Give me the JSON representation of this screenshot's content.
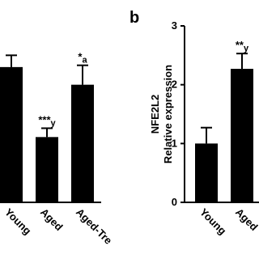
{
  "chart_data": [
    {
      "type": "bar",
      "categories": [
        "Young",
        "Aged",
        "Aged-Tre"
      ],
      "values": [
        2.3,
        1.11,
        2.0
      ],
      "errors": [
        0.2,
        0.15,
        0.33
      ],
      "annotations": [
        null,
        {
          "stars": "***",
          "letter": "y"
        },
        {
          "stars": "*",
          "letter": "a"
        }
      ],
      "color": "#000000",
      "ylim": [
        0,
        3
      ]
    },
    {
      "type": "bar",
      "title": "b",
      "ylabel": [
        "NFE2L2",
        "Relative expression"
      ],
      "categories": [
        "Young",
        "Aged"
      ],
      "values": [
        1.0,
        2.27
      ],
      "errors": [
        0.27,
        0.26
      ],
      "annotations": [
        null,
        {
          "stars": "**",
          "letter": "y"
        }
      ],
      "color": "#000000",
      "ylim": [
        0,
        3
      ],
      "yticks": [
        0,
        1,
        2,
        3
      ]
    }
  ]
}
